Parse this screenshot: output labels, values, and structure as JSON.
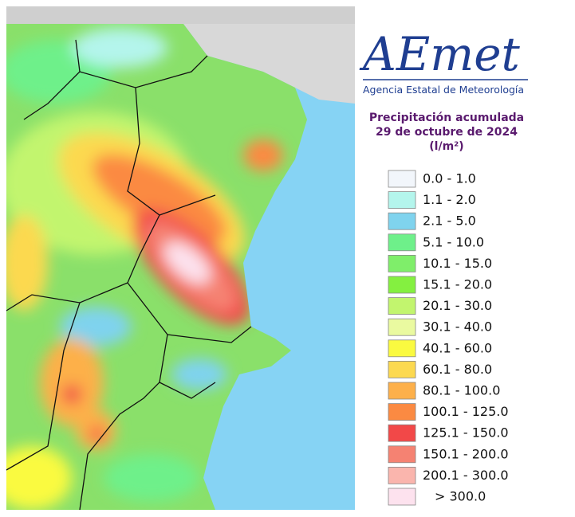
{
  "logo": "AEmet",
  "agency": "Agencia Estatal de Meteorología",
  "title": "Precipitación acumulada",
  "date": "29 de octubre de 2024",
  "unit": "(l/m²)",
  "legend": [
    {
      "label": "0.0 - 1.0",
      "color": "#f2f6fb"
    },
    {
      "label": "1.1 - 2.0",
      "color": "#b4f5ec"
    },
    {
      "label": "2.1 - 5.0",
      "color": "#7fd3ee"
    },
    {
      "label": "5.1 - 10.0",
      "color": "#6ef08a"
    },
    {
      "label": "10.1 - 15.0",
      "color": "#7fee6a"
    },
    {
      "label": "15.1 - 20.0",
      "color": "#84f040"
    },
    {
      "label": "20.1 - 30.0",
      "color": "#c2f56e"
    },
    {
      "label": "30.1 - 40.0",
      "color": "#eafaa0"
    },
    {
      "label": "40.1 - 60.0",
      "color": "#fafa40"
    },
    {
      "label": "60.1 - 80.0",
      "color": "#fcd950"
    },
    {
      "label": "80.1 - 100.0",
      "color": "#fdb04a"
    },
    {
      "label": "100.1 - 125.0",
      "color": "#fb8a42"
    },
    {
      "label": "125.1 - 150.0",
      "color": "#f24848"
    },
    {
      "label": "150.1 - 200.0",
      "color": "#f58272"
    },
    {
      "label": "200.1 - 300.0",
      "color": "#fab5ad"
    },
    {
      "label": "> 300.0",
      "color": "#fde2ee"
    }
  ]
}
